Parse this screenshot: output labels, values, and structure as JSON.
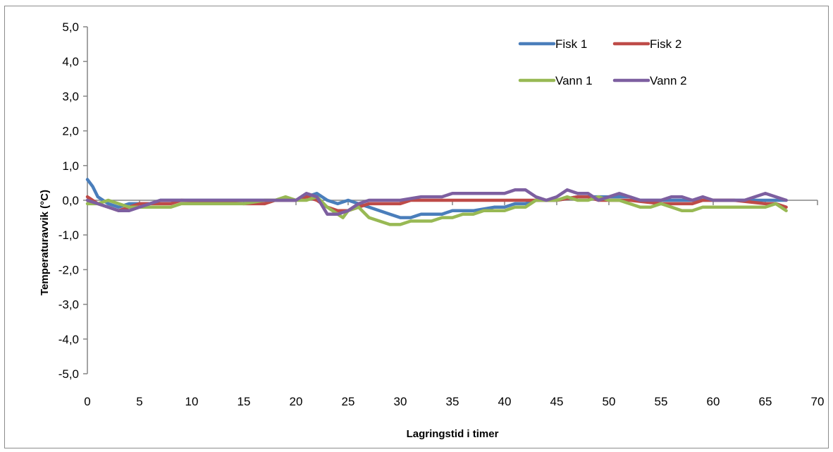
{
  "chart_data": {
    "type": "line",
    "title": "",
    "xlabel": "Lagringstid i timer",
    "ylabel": "Temperaturavvik (°C)",
    "xlim": [
      0,
      70
    ],
    "ylim": [
      -5,
      5
    ],
    "x_ticks": [
      "0",
      "5",
      "10",
      "15",
      "20",
      "25",
      "30",
      "35",
      "40",
      "45",
      "50",
      "55",
      "60",
      "65",
      "70"
    ],
    "y_ticks": [
      "5,0",
      "4,0",
      "3,0",
      "2,0",
      "1,0",
      "0,0",
      "-1,0",
      "-2,0",
      "-3,0",
      "-4,0",
      "-5,0"
    ],
    "legend_position": "top-right",
    "series": [
      {
        "name": "Fisk 1",
        "color": "#4a7ebb",
        "points": [
          [
            0,
            0.6
          ],
          [
            0.5,
            0.4
          ],
          [
            1,
            0.1
          ],
          [
            2,
            -0.1
          ],
          [
            3,
            -0.2
          ],
          [
            4,
            -0.1
          ],
          [
            5,
            -0.1
          ],
          [
            6,
            -0.1
          ],
          [
            7,
            0.0
          ],
          [
            10,
            0.0
          ],
          [
            15,
            0.0
          ],
          [
            20,
            0.0
          ],
          [
            21,
            0.1
          ],
          [
            22,
            0.2
          ],
          [
            22.5,
            0.1
          ],
          [
            23,
            0.0
          ],
          [
            24,
            -0.1
          ],
          [
            25,
            0.0
          ],
          [
            26,
            -0.1
          ],
          [
            27,
            -0.2
          ],
          [
            28,
            -0.3
          ],
          [
            29,
            -0.4
          ],
          [
            30,
            -0.5
          ],
          [
            31,
            -0.5
          ],
          [
            32,
            -0.4
          ],
          [
            33,
            -0.4
          ],
          [
            34,
            -0.4
          ],
          [
            35,
            -0.3
          ],
          [
            37,
            -0.3
          ],
          [
            39,
            -0.2
          ],
          [
            40,
            -0.2
          ],
          [
            41,
            -0.1
          ],
          [
            42,
            -0.1
          ],
          [
            43,
            0.0
          ],
          [
            45,
            0.0
          ],
          [
            47,
            0.1
          ],
          [
            50,
            0.1
          ],
          [
            52,
            0.1
          ],
          [
            53,
            0.0
          ],
          [
            60,
            0.0
          ],
          [
            65,
            0.0
          ],
          [
            67,
            0.0
          ]
        ]
      },
      {
        "name": "Fisk 2",
        "color": "#be4b48",
        "points": [
          [
            0,
            0.1
          ],
          [
            1,
            -0.1
          ],
          [
            2,
            -0.2
          ],
          [
            3,
            -0.3
          ],
          [
            4,
            -0.2
          ],
          [
            5,
            -0.1
          ],
          [
            7,
            -0.1
          ],
          [
            8,
            -0.1
          ],
          [
            9,
            0.0
          ],
          [
            15,
            -0.1
          ],
          [
            17,
            -0.1
          ],
          [
            18,
            0.0
          ],
          [
            20,
            0.0
          ],
          [
            21,
            0.1
          ],
          [
            22,
            0.0
          ],
          [
            23,
            -0.2
          ],
          [
            24,
            -0.3
          ],
          [
            25,
            -0.3
          ],
          [
            26,
            -0.2
          ],
          [
            27,
            -0.1
          ],
          [
            28,
            -0.1
          ],
          [
            29,
            -0.1
          ],
          [
            30,
            -0.1
          ],
          [
            31,
            0.0
          ],
          [
            40,
            0.0
          ],
          [
            42,
            0.0
          ],
          [
            45,
            0.0
          ],
          [
            47,
            0.1
          ],
          [
            48,
            0.1
          ],
          [
            49,
            0.0
          ],
          [
            52,
            0.0
          ],
          [
            55,
            -0.1
          ],
          [
            57,
            -0.1
          ],
          [
            58,
            -0.1
          ],
          [
            59,
            0.0
          ],
          [
            62,
            0.0
          ],
          [
            65,
            -0.1
          ],
          [
            66,
            -0.1
          ],
          [
            67,
            -0.2
          ]
        ]
      },
      {
        "name": "Vann 1",
        "color": "#98b954",
        "points": [
          [
            0,
            -0.1
          ],
          [
            1,
            -0.1
          ],
          [
            2,
            0.0
          ],
          [
            3,
            -0.1
          ],
          [
            4,
            -0.2
          ],
          [
            5,
            -0.2
          ],
          [
            6,
            -0.2
          ],
          [
            8,
            -0.2
          ],
          [
            9,
            -0.1
          ],
          [
            10,
            -0.1
          ],
          [
            15,
            -0.1
          ],
          [
            17,
            0.0
          ],
          [
            18,
            0.0
          ],
          [
            19,
            0.1
          ],
          [
            20,
            0.0
          ],
          [
            21,
            0.0
          ],
          [
            22,
            0.1
          ],
          [
            23,
            -0.2
          ],
          [
            24,
            -0.4
          ],
          [
            24.5,
            -0.5
          ],
          [
            25,
            -0.3
          ],
          [
            26,
            -0.2
          ],
          [
            27,
            -0.5
          ],
          [
            28,
            -0.6
          ],
          [
            29,
            -0.7
          ],
          [
            30,
            -0.7
          ],
          [
            31,
            -0.6
          ],
          [
            32,
            -0.6
          ],
          [
            33,
            -0.6
          ],
          [
            34,
            -0.5
          ],
          [
            35,
            -0.5
          ],
          [
            36,
            -0.4
          ],
          [
            37,
            -0.4
          ],
          [
            38,
            -0.3
          ],
          [
            39,
            -0.3
          ],
          [
            40,
            -0.3
          ],
          [
            41,
            -0.2
          ],
          [
            42,
            -0.2
          ],
          [
            43,
            0.0
          ],
          [
            45,
            0.0
          ],
          [
            46,
            0.1
          ],
          [
            47,
            0.0
          ],
          [
            48,
            0.0
          ],
          [
            49,
            0.1
          ],
          [
            50,
            0.0
          ],
          [
            51,
            0.0
          ],
          [
            52,
            -0.1
          ],
          [
            53,
            -0.2
          ],
          [
            54,
            -0.2
          ],
          [
            55,
            -0.1
          ],
          [
            56,
            -0.2
          ],
          [
            57,
            -0.3
          ],
          [
            58,
            -0.3
          ],
          [
            59,
            -0.2
          ],
          [
            60,
            -0.2
          ],
          [
            62,
            -0.2
          ],
          [
            65,
            -0.2
          ],
          [
            66,
            -0.1
          ],
          [
            67,
            -0.3
          ]
        ]
      },
      {
        "name": "Vann 2",
        "color": "#7d5fa0",
        "points": [
          [
            0,
            0.0
          ],
          [
            1,
            -0.1
          ],
          [
            2,
            -0.2
          ],
          [
            3,
            -0.3
          ],
          [
            4,
            -0.3
          ],
          [
            5,
            -0.2
          ],
          [
            6,
            -0.1
          ],
          [
            7,
            0.0
          ],
          [
            10,
            0.0
          ],
          [
            15,
            0.0
          ],
          [
            18,
            0.0
          ],
          [
            19,
            0.0
          ],
          [
            20,
            0.0
          ],
          [
            21,
            0.2
          ],
          [
            22,
            0.1
          ],
          [
            23,
            -0.4
          ],
          [
            24,
            -0.4
          ],
          [
            25,
            -0.3
          ],
          [
            26,
            -0.1
          ],
          [
            27,
            0.0
          ],
          [
            30,
            0.0
          ],
          [
            32,
            0.1
          ],
          [
            33,
            0.1
          ],
          [
            34,
            0.1
          ],
          [
            35,
            0.2
          ],
          [
            37,
            0.2
          ],
          [
            38,
            0.2
          ],
          [
            39,
            0.2
          ],
          [
            40,
            0.2
          ],
          [
            41,
            0.3
          ],
          [
            42,
            0.3
          ],
          [
            43,
            0.1
          ],
          [
            44,
            0.0
          ],
          [
            45,
            0.1
          ],
          [
            46,
            0.3
          ],
          [
            47,
            0.2
          ],
          [
            48,
            0.2
          ],
          [
            49,
            0.0
          ],
          [
            50,
            0.1
          ],
          [
            51,
            0.2
          ],
          [
            52,
            0.1
          ],
          [
            53,
            0.0
          ],
          [
            55,
            0.0
          ],
          [
            56,
            0.1
          ],
          [
            57,
            0.1
          ],
          [
            58,
            0.0
          ],
          [
            59,
            0.1
          ],
          [
            60,
            0.0
          ],
          [
            63,
            0.0
          ],
          [
            64,
            0.1
          ],
          [
            65,
            0.2
          ],
          [
            66,
            0.1
          ],
          [
            67,
            0.0
          ]
        ]
      }
    ]
  }
}
